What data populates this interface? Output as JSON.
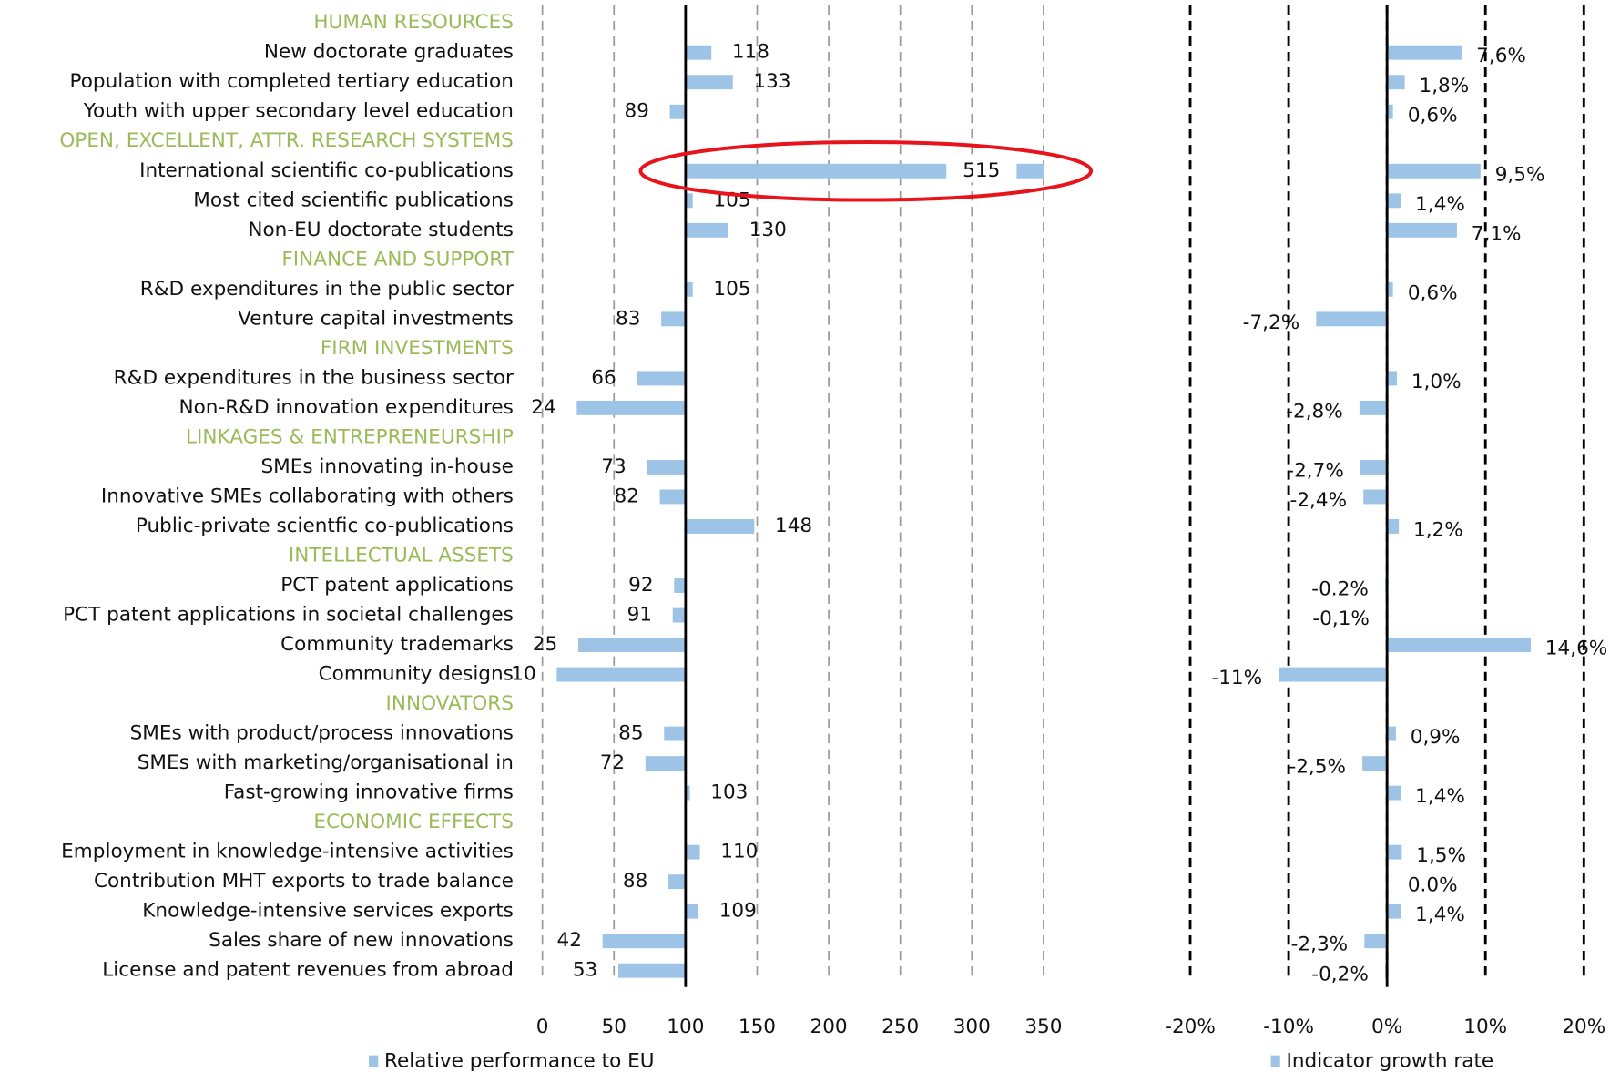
{
  "chart_data": {
    "type": "bar",
    "groups": [
      {
        "name": "HUMAN RESOURCES",
        "categories": [
          "New doctorate graduates",
          "Population with completed tertiary education",
          "Youth with upper secondary level education"
        ],
        "values": [
          118,
          133,
          89
        ],
        "growth": [
          7.6,
          1.8,
          0.6
        ],
        "growth_labels": [
          "7,6%",
          "1,8%",
          "0,6%"
        ]
      },
      {
        "name": "OPEN, EXCELLENT, ATTR. RESEARCH SYSTEMS",
        "categories": [
          "International scientific co-publications",
          "Most cited scientific publications",
          "Non-EU doctorate students"
        ],
        "values": [
          515,
          105,
          130
        ],
        "growth": [
          9.5,
          1.4,
          7.1
        ],
        "growth_labels": [
          "9,5%",
          "1,4%",
          "7,1%"
        ]
      },
      {
        "name": "FINANCE AND SUPPORT",
        "categories": [
          "R&D expenditures in the public sector",
          "Venture capital investments"
        ],
        "values": [
          105,
          83
        ],
        "growth": [
          0.6,
          -7.2
        ],
        "growth_labels": [
          "0,6%",
          "-7,2%"
        ]
      },
      {
        "name": "FIRM INVESTMENTS",
        "categories": [
          "R&D expenditures in the business sector",
          "Non-R&D innovation expenditures"
        ],
        "values": [
          66,
          24
        ],
        "growth": [
          1.0,
          -2.8
        ],
        "growth_labels": [
          "1,0%",
          "-2,8%"
        ]
      },
      {
        "name": "LINKAGES & ENTREPRENEURSHIP",
        "categories": [
          "SMEs innovating in-house",
          "Innovative SMEs collaborating with others",
          "Public-private scientfic co-publications"
        ],
        "values": [
          73,
          82,
          148
        ],
        "growth": [
          -2.7,
          -2.4,
          1.2
        ],
        "growth_labels": [
          "-2,7%",
          "-2,4%",
          "1,2%"
        ]
      },
      {
        "name": "INTELLECTUAL ASSETS",
        "categories": [
          "PCT patent applications",
          "PCT patent applications in societal challenges",
          "Community trademarks",
          "Community designs"
        ],
        "values": [
          92,
          91,
          25,
          10
        ],
        "growth": [
          -0.2,
          -0.1,
          14.6,
          -11
        ],
        "growth_labels": [
          "-0.2%",
          "-0,1%",
          "14,6%",
          "-11%"
        ]
      },
      {
        "name": "INNOVATORS",
        "categories": [
          "SMEs with product/process innovations",
          "SMEs with marketing/organisational in",
          "Fast-growing innovative firms"
        ],
        "values": [
          85,
          72,
          103
        ],
        "growth": [
          0.9,
          -2.5,
          1.4
        ],
        "growth_labels": [
          "0,9%",
          "-2,5%",
          "1,4%"
        ]
      },
      {
        "name": "ECONOMIC EFFECTS",
        "categories": [
          "Employment in knowledge-intensive activities",
          "Contribution MHT exports to trade balance",
          "Knowledge-intensive services exports",
          "Sales share of new innovations",
          "License and patent revenues from abroad"
        ],
        "values": [
          110,
          88,
          109,
          42,
          53
        ],
        "growth": [
          1.5,
          0.0,
          1.4,
          -2.3,
          -0.2
        ],
        "growth_labels": [
          "1,5%",
          "0.0%",
          "1,4%",
          "-2,3%",
          "-0,2%"
        ]
      }
    ],
    "panels": [
      {
        "name": "Relative performance to EU",
        "color": "#9dc3e6",
        "baseline": 100,
        "xlim": [
          0,
          350
        ],
        "xticks": [
          0,
          50,
          100,
          150,
          200,
          250,
          300,
          350
        ],
        "grid": true
      },
      {
        "name": "Indicator growth rate",
        "color": "#9dc3e6",
        "baseline": 0,
        "xlim": [
          -20,
          20
        ],
        "xticks": [
          {
            "value": -20,
            "label": "-20%"
          },
          {
            "value": -10,
            "label": "-10%"
          },
          {
            "value": 0,
            "label": "0%"
          },
          {
            "value": 10,
            "label": "10%"
          },
          {
            "value": 20,
            "label": "20%"
          }
        ],
        "grid": true
      }
    ]
  }
}
